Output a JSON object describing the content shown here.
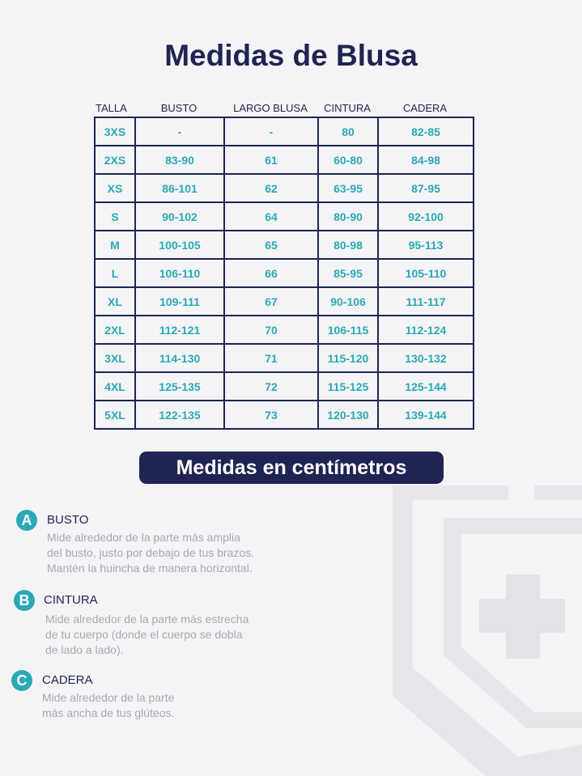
{
  "title": "Medidas de Blusa",
  "table": {
    "headers": [
      "TALLA",
      "BUSTO",
      "LARGO BLUSA",
      "CINTURA",
      "CADERA"
    ],
    "rows": [
      [
        "3XS",
        "-",
        "-",
        "80",
        "82-85"
      ],
      [
        "2XS",
        "83-90",
        "61",
        "60-80",
        "84-98"
      ],
      [
        "XS",
        "86-101",
        "62",
        "63-95",
        "87-95"
      ],
      [
        "S",
        "90-102",
        "64",
        "80-90",
        "92-100"
      ],
      [
        "M",
        "100-105",
        "65",
        "80-98",
        "95-113"
      ],
      [
        "L",
        "106-110",
        "66",
        "85-95",
        "105-110"
      ],
      [
        "XL",
        "109-111",
        "67",
        "90-106",
        "111-117"
      ],
      [
        "2XL",
        "112-121",
        "70",
        "106-115",
        "112-124"
      ],
      [
        "3XL",
        "114-130",
        "71",
        "115-120",
        "130-132"
      ],
      [
        "4XL",
        "125-135",
        "72",
        "115-125",
        "125-144"
      ],
      [
        "5XL",
        "122-135",
        "73",
        "120-130",
        "139-144"
      ]
    ]
  },
  "badge": "Medidas en centímetros",
  "sections": [
    {
      "letter": "A",
      "heading": "BUSTO",
      "lines": [
        "Mide alrededor de la parte más amplia",
        "del busto, justo por debajo de tus brazos.",
        "Mantén la huincha de manera horizontal."
      ]
    },
    {
      "letter": "B",
      "heading": "CINTURA",
      "lines": [
        "Mide alrededor de la parte más estrecha",
        "de tu cuerpo (donde el cuerpo se dobla",
        "de lado a lado)."
      ]
    },
    {
      "letter": "C",
      "heading": "CADERA",
      "lines": [
        "Mide alrededor de la parte",
        "más ancha de tus glúteos."
      ]
    }
  ]
}
